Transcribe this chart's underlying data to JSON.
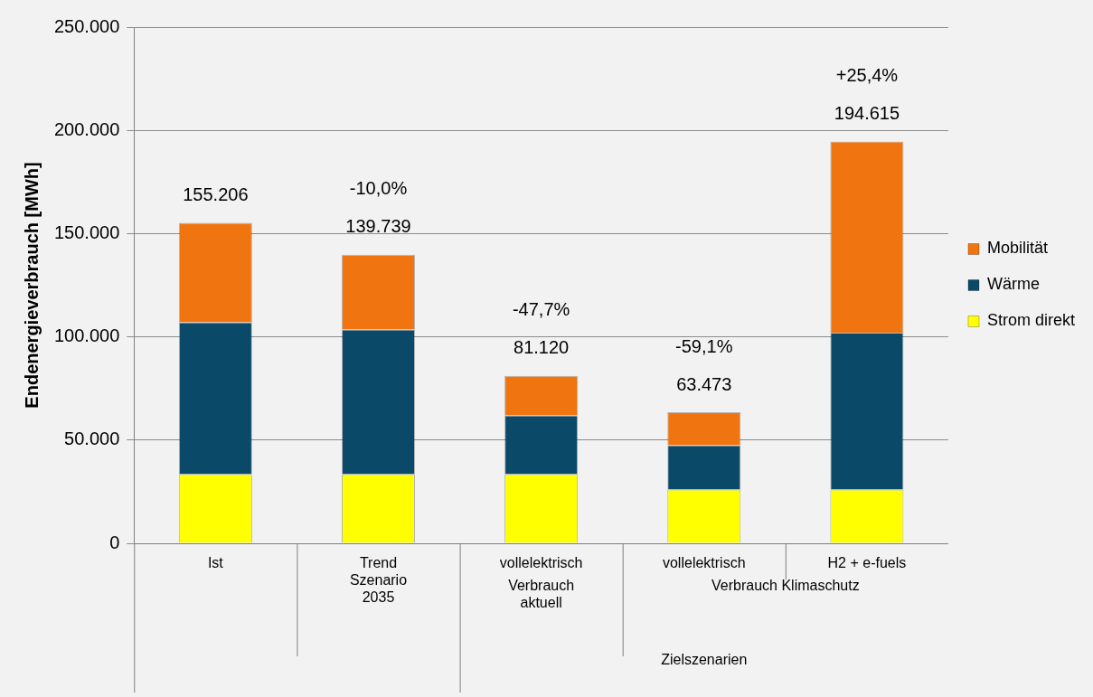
{
  "chart_data": {
    "type": "bar",
    "stacked": true,
    "ylabel": "Endenergieverbrauch [MWh]",
    "categories": [
      "Ist",
      "Trend Szenario 2035",
      "vollelektrisch",
      "vollelektrisch",
      "H2 + e-fuels"
    ],
    "series": [
      {
        "name": "Strom direkt",
        "color": "#ffff00",
        "values": [
          33500,
          33500,
          33500,
          26000,
          26000
        ]
      },
      {
        "name": "Wärme",
        "color": "#0a4a68",
        "values": [
          73500,
          70000,
          28500,
          21500,
          76000
        ]
      },
      {
        "name": "Mobilität",
        "color": "#f07510",
        "values": [
          48206,
          36239,
          19120,
          15973,
          92615
        ]
      }
    ],
    "totals": [
      "155.206",
      "139.739",
      "81.120",
      "63.473",
      "194.615"
    ],
    "ylim": [
      0,
      250000
    ],
    "yticks": [
      {
        "value": 0,
        "label": "0"
      },
      {
        "value": 50000,
        "label": "50.000"
      },
      {
        "value": 100000,
        "label": "100.000"
      },
      {
        "value": 150000,
        "label": "150.000"
      },
      {
        "value": 200000,
        "label": "200.000"
      },
      {
        "value": 250000,
        "label": "250.000"
      }
    ],
    "grid": "y",
    "legend": "right",
    "annotations": [
      "-10,0%",
      "-47,7%",
      "-59,1%",
      "+25,4%",
      "Verbrauch aktuell",
      "Verbrauch Klimaschutz",
      "Zielszenarien"
    ]
  }
}
